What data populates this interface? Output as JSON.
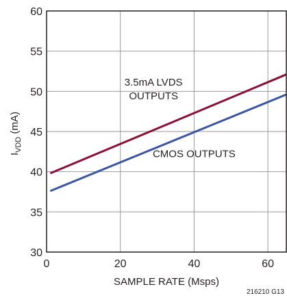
{
  "chart_data": {
    "type": "line",
    "xlabel": "SAMPLE RATE (Msps)",
    "ylabel": {
      "main": "I",
      "sub": "VDD",
      "unit": " (mA)"
    },
    "xlim": [
      0,
      65
    ],
    "ylim": [
      30,
      60
    ],
    "xticks": [
      0,
      20,
      40,
      60
    ],
    "yticks": [
      30,
      35,
      40,
      45,
      50,
      55,
      60
    ],
    "grid": true,
    "series": [
      {
        "color": "#8c1035",
        "x": [
          1,
          65
        ],
        "y": [
          39.8,
          52.1
        ]
      },
      {
        "color": "#3a55a4",
        "x": [
          1,
          65
        ],
        "y": [
          37.6,
          49.6
        ]
      }
    ],
    "annotations": [
      {
        "lines": [
          "3.5mA LVDS",
          "OUTPUTS"
        ],
        "x": 29,
        "y": 50.7
      },
      {
        "lines": [
          "CMOS OUTPUTS"
        ],
        "x": 40,
        "y": 41.8
      }
    ]
  },
  "figure_id": "216210 G13"
}
